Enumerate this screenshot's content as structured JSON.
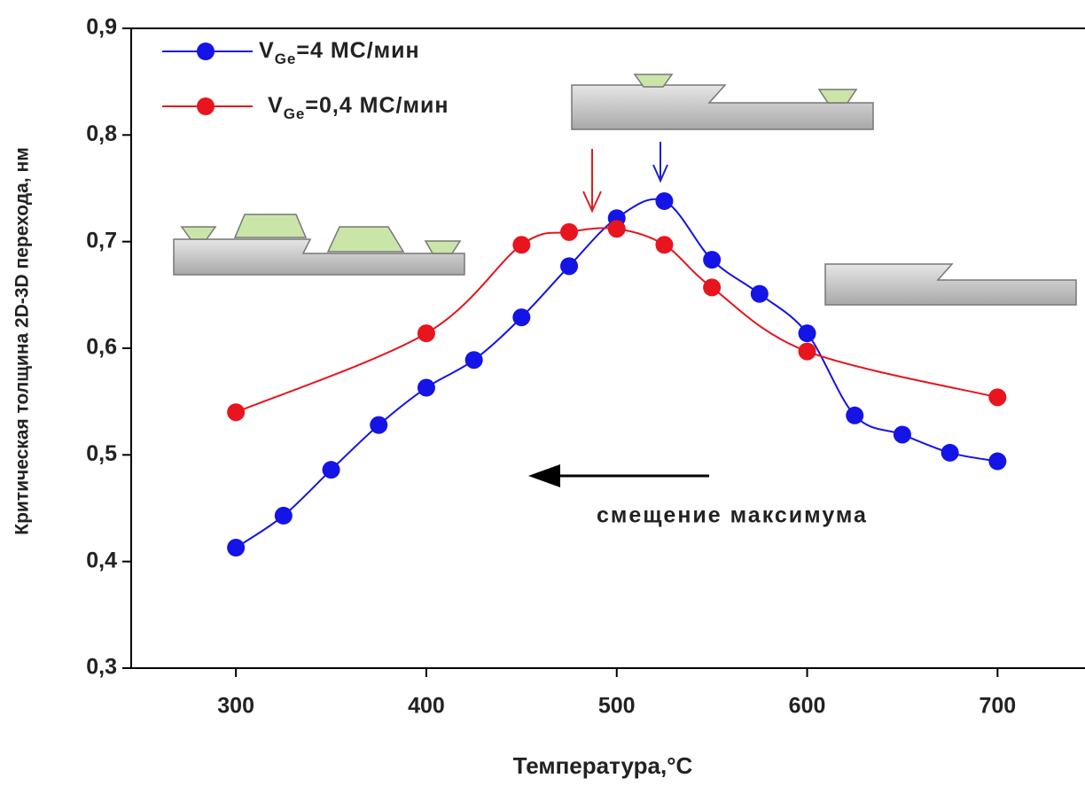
{
  "chart_data": {
    "type": "line",
    "x_label": "Температура,°С",
    "y_label": "Критическая толщина 2D-3D перехода, нм",
    "annotation": "смещение максимума",
    "xlim": [
      245,
      745
    ],
    "ylim": [
      0.3,
      0.9
    ],
    "xticks": [
      300,
      400,
      500,
      600,
      700
    ],
    "yticks": [
      {
        "value": 0.3,
        "label": "0,3"
      },
      {
        "value": 0.4,
        "label": "0,4"
      },
      {
        "value": 0.5,
        "label": "0,5"
      },
      {
        "value": 0.6,
        "label": "0,6"
      },
      {
        "value": 0.7,
        "label": "0,7"
      },
      {
        "value": 0.8,
        "label": "0,8"
      },
      {
        "value": 0.9,
        "label": "0,9"
      }
    ],
    "series": [
      {
        "name": "VGe=4 МС/мин",
        "color": "#1414e6",
        "x": [
          300,
          325,
          350,
          375,
          400,
          425,
          450,
          475,
          500,
          525,
          550,
          575,
          600,
          625,
          650,
          675,
          700
        ],
        "values": [
          0.413,
          0.443,
          0.486,
          0.528,
          0.563,
          0.589,
          0.629,
          0.677,
          0.722,
          0.738,
          0.683,
          0.651,
          0.614,
          0.537,
          0.519,
          0.502,
          0.494
        ]
      },
      {
        "name": "VGe=0,4 МС/мин",
        "color": "#e8141e",
        "x": [
          300,
          400,
          450,
          475,
          500,
          525,
          550,
          600,
          700
        ],
        "values": [
          0.54,
          0.614,
          0.697,
          0.709,
          0.712,
          0.697,
          0.657,
          0.597,
          0.554
        ]
      }
    ]
  }
}
